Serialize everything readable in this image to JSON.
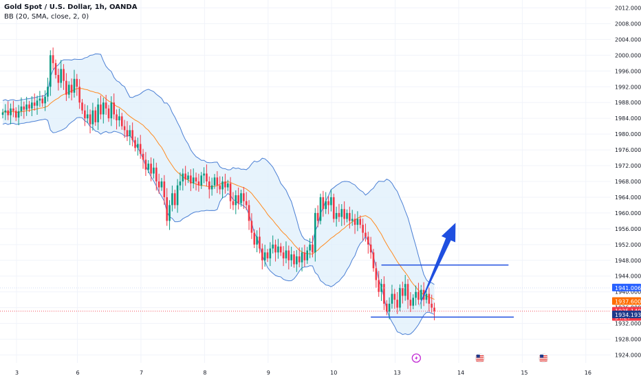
{
  "header": {
    "symbol_title": "Gold Spot / U.S. Dollar, 1h, OANDA",
    "indicator_label": "BB (20, SMA, close, 2, 0)"
  },
  "colors": {
    "up": "#089981",
    "down": "#f23645",
    "band": "#4a7fd4",
    "band_fill": "#ddeefb",
    "basis": "#ff8a1f",
    "arrow": "#1f4fe0",
    "level_line": "#1f4fe0",
    "grid": "#f0f3fa",
    "price_tag_blue": "#2962ff",
    "price_tag_orange": "#ff6d00",
    "price_tag_red": "#f23645",
    "price_tag_navy": "#1e3a8a"
  },
  "chart_data": {
    "type": "candlestick",
    "title": "Gold Spot / U.S. Dollar, 1h, OANDA",
    "ylim": [
      1922,
      2014
    ],
    "y_ticks": [
      1924.0,
      1928.0,
      1932.0,
      1936.0,
      1940.0,
      1944.0,
      1948.0,
      1952.0,
      1956.0,
      1960.0,
      1964.0,
      1968.0,
      1972.0,
      1976.0,
      1980.0,
      1984.0,
      1988.0,
      1992.0,
      1996.0,
      2000.0,
      2004.0,
      2008.0,
      2012.0
    ],
    "x_ticks": [
      {
        "label": "3",
        "i": 0
      },
      {
        "label": "6",
        "i": 23
      },
      {
        "label": "7",
        "i": 47
      },
      {
        "label": "8",
        "i": 71
      },
      {
        "label": "9",
        "i": 95
      },
      {
        "label": "10",
        "i": 119
      },
      {
        "label": "13",
        "i": 143
      },
      {
        "label": "14",
        "i": 167
      },
      {
        "label": "15",
        "i": 191
      },
      {
        "label": "16",
        "i": 215
      }
    ],
    "closes": [
      1985.5,
      1986.0,
      1984.8,
      1986.5,
      1985.9,
      1984.2,
      1985.8,
      1987.0,
      1986.2,
      1987.5,
      1986.5,
      1988.0,
      1987.2,
      1988.5,
      1989.0,
      1987.8,
      1989.5,
      1992.0,
      2000.0,
      1998.0,
      1995.0,
      1993.0,
      1996.5,
      1993.5,
      1990.0,
      1992.5,
      1990.5,
      1994.0,
      1992.0,
      1988.0,
      1986.0,
      1984.0,
      1985.0,
      1982.5,
      1986.0,
      1983.0,
      1987.5,
      1985.0,
      1988.0,
      1986.5,
      1984.0,
      1988.0,
      1985.0,
      1983.5,
      1984.5,
      1982.0,
      1981.0,
      1979.5,
      1981.0,
      1978.5,
      1976.5,
      1977.5,
      1975.0,
      1973.5,
      1971.0,
      1972.5,
      1970.0,
      1971.5,
      1968.0,
      1966.5,
      1968.0,
      1964.0,
      1958.0,
      1962.0,
      1965.0,
      1962.0,
      1967.0,
      1968.0,
      1970.0,
      1968.5,
      1969.5,
      1967.5,
      1969.0,
      1968.0,
      1967.0,
      1969.5,
      1970.0,
      1968.0,
      1966.0,
      1967.0,
      1969.0,
      1967.0,
      1966.0,
      1968.0,
      1966.5,
      1967.5,
      1963.0,
      1962.0,
      1964.5,
      1962.5,
      1965.0,
      1963.0,
      1962.0,
      1958.0,
      1955.0,
      1952.0,
      1954.0,
      1951.0,
      1948.0,
      1950.0,
      1948.5,
      1951.0,
      1952.0,
      1950.0,
      1951.5,
      1950.0,
      1948.5,
      1950.5,
      1948.0,
      1949.5,
      1947.0,
      1949.0,
      1947.5,
      1950.0,
      1948.0,
      1950.5,
      1952.0,
      1950.0,
      1960.0,
      1958.0,
      1964.0,
      1961.0,
      1963.0,
      1962.0,
      1964.0,
      1958.5,
      1960.0,
      1959.0,
      1961.0,
      1958.5,
      1960.0,
      1958.0,
      1958.5,
      1957.0,
      1958.5,
      1957.0,
      1955.0,
      1954.0,
      1952.0,
      1950.0,
      1946.0,
      1943.0,
      1940.0,
      1942.0,
      1937.0,
      1935.0,
      1937.0,
      1939.5,
      1938.0,
      1936.0,
      1941.0,
      1939.0,
      1942.0,
      1938.0,
      1936.5,
      1938.5,
      1940.0,
      1938.0,
      1940.5,
      1938.0,
      1939.5,
      1937.0,
      1936.0,
      1935.1
    ],
    "bb_upper_start": 1992.0,
    "bb_basis_start": 1988.0,
    "bb_lower_start": 1982.0,
    "levels": [
      {
        "price": 1946.8,
        "from_i": 143,
        "to_i": 191
      },
      {
        "price": 1933.6,
        "from_i": 139,
        "to_i": 193
      }
    ],
    "arrow": {
      "from_i": 157,
      "from_price": 1936.0,
      "to_i": 171,
      "to_price": 1957.5
    }
  },
  "price_tags": [
    {
      "label": "1941.006",
      "price": 1941.006,
      "color": "#2962ff",
      "sub": ""
    },
    {
      "label": "1937.600",
      "price": 1937.6,
      "color": "#ff6d00",
      "sub": ""
    },
    {
      "label": "1935.140",
      "price": 1935.14,
      "color": "#f23645",
      "sub": "54:27"
    },
    {
      "label": "1934.193",
      "price": 1934.193,
      "color": "#1e3a8a",
      "sub": ""
    }
  ],
  "event_icons": [
    {
      "icon": "lightning-icon",
      "i": 151
    },
    {
      "icon": "us-flag-icon",
      "i": 175
    },
    {
      "icon": "us-flag-icon",
      "i": 199
    }
  ]
}
